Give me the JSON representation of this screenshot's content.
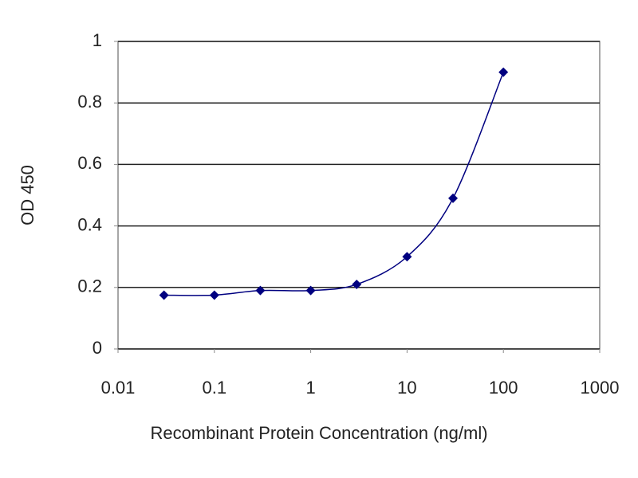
{
  "chart_data": {
    "type": "scatter",
    "xlabel": "Recombinant Protein Concentration (ng/ml)",
    "ylabel": "OD 450",
    "x": [
      0.03,
      0.1,
      0.3,
      1,
      3,
      10,
      30,
      100
    ],
    "series": [
      {
        "color": "#000080",
        "values": [
          0.175,
          0.175,
          0.19,
          0.19,
          0.21,
          0.3,
          0.49,
          0.9
        ]
      }
    ],
    "xscale": "log",
    "xlim": [
      0.01,
      1000
    ],
    "xticks": [
      0.01,
      0.1,
      1,
      10,
      100,
      1000
    ],
    "ylim": [
      0,
      1
    ],
    "yticks": [
      0,
      0.2,
      0.4,
      0.6,
      0.8,
      1
    ],
    "grid": true,
    "smooth": true
  }
}
